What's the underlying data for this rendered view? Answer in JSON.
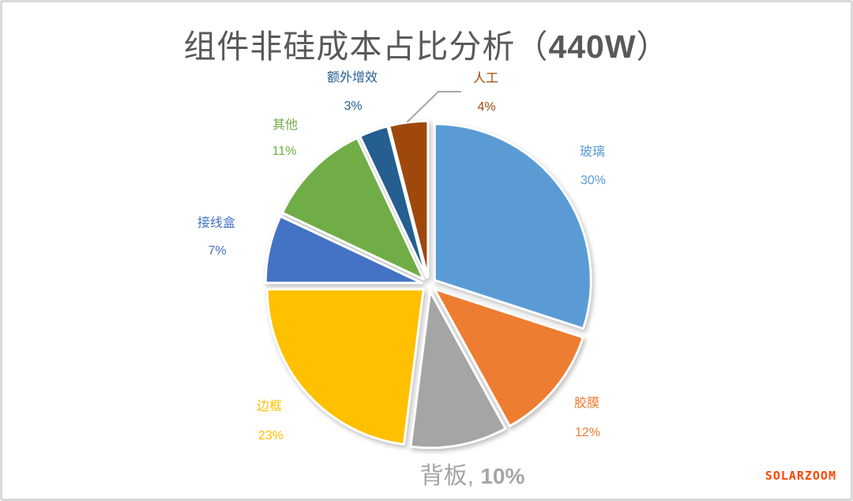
{
  "title": {
    "prefix": "组件非硅成本占比分析（",
    "highlight": "440W",
    "suffix": "）"
  },
  "watermark": "SOLARZOOM",
  "chart_data": {
    "type": "pie",
    "title": "组件非硅成本占比分析（440W）",
    "unit": "%",
    "start_angle": "12-o-clock",
    "direction": "clockwise",
    "legend": "none",
    "label_style": "outside, colored same as slice, name + bold percent",
    "exploded": true,
    "slices": [
      {
        "label": "玻璃",
        "value": 30,
        "pct": "30%",
        "color": "#5B9BD5",
        "label_suffix": ""
      },
      {
        "label": "胶膜",
        "value": 12,
        "pct": "12%",
        "color": "#ED7D31",
        "label_suffix": ""
      },
      {
        "label": "背板",
        "value": 10,
        "pct": "10%",
        "color": "#A5A5A5",
        "label_suffix": ", "
      },
      {
        "label": "边框",
        "value": 23,
        "pct": "23%",
        "color": "#FFC000",
        "label_suffix": ""
      },
      {
        "label": "接线盒",
        "value": 7,
        "pct": "7%",
        "color": "#4472C4",
        "label_suffix": ""
      },
      {
        "label": "其他",
        "value": 11,
        "pct": "11%",
        "color": "#70AD47",
        "label_suffix": ""
      },
      {
        "label": "额外增效",
        "value": 3,
        "pct": "3%",
        "color": "#255E91",
        "label_suffix": ""
      },
      {
        "label": "人工",
        "value": 4,
        "pct": "4%",
        "color": "#9E480E",
        "label_suffix": ""
      }
    ],
    "leader_line_color": "#A6A6A6"
  }
}
